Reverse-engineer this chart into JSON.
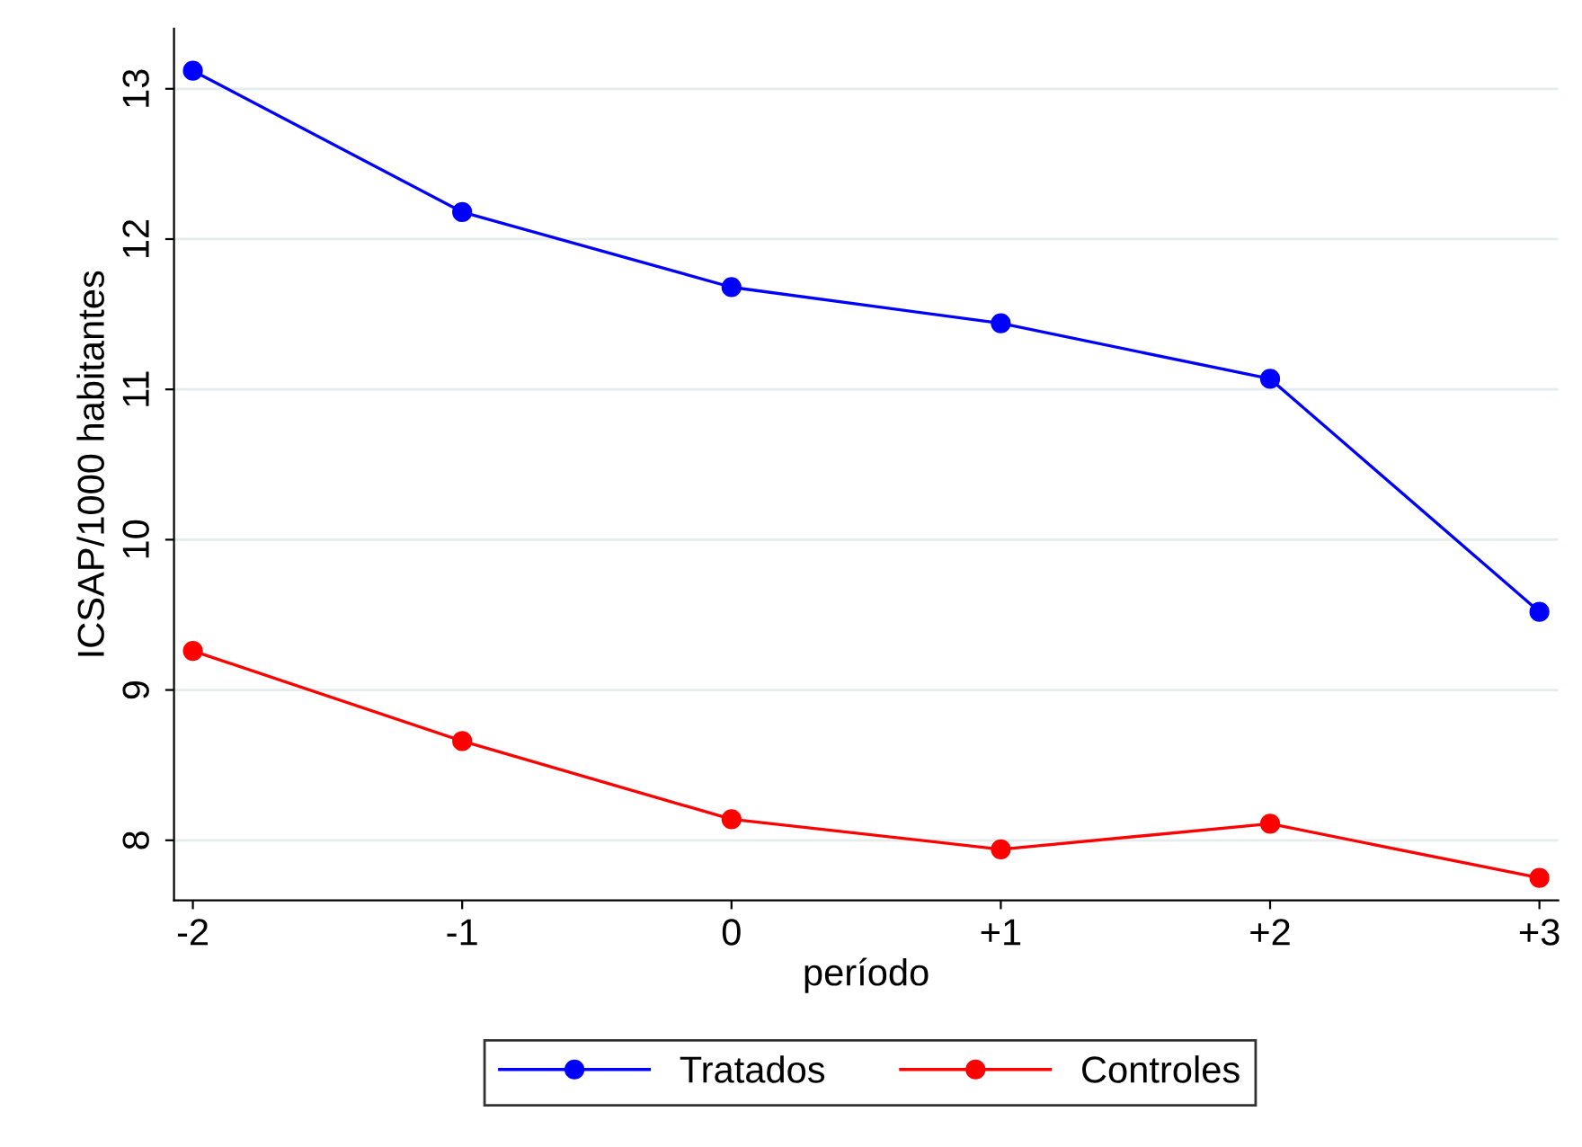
{
  "chart_data": {
    "type": "line",
    "xlabel": "período",
    "ylabel": "ICSAP/1000 habitantes",
    "x": [
      -2,
      -1,
      0,
      1,
      2,
      3
    ],
    "series": [
      {
        "name": "Tratados",
        "color": "#0000ff",
        "values": [
          13.12,
          12.18,
          11.68,
          11.44,
          11.07,
          9.52
        ]
      },
      {
        "name": "Controles",
        "color": "#ff0000",
        "values": [
          9.26,
          8.66,
          8.14,
          7.94,
          8.11,
          7.75
        ]
      }
    ],
    "xlim": [
      -2.07,
      3.07
    ],
    "ylim": [
      7.6,
      13.4
    ],
    "xticks": [
      -2,
      -1,
      0,
      {
        "value": 1,
        "label": "+1"
      },
      {
        "value": 2,
        "label": "+2"
      },
      {
        "value": 3,
        "label": "+3"
      }
    ],
    "yticks": [
      8,
      9,
      10,
      11,
      12,
      13
    ],
    "grid": "y",
    "legend": "bottom",
    "marker": "circle",
    "line_style": "solid"
  }
}
